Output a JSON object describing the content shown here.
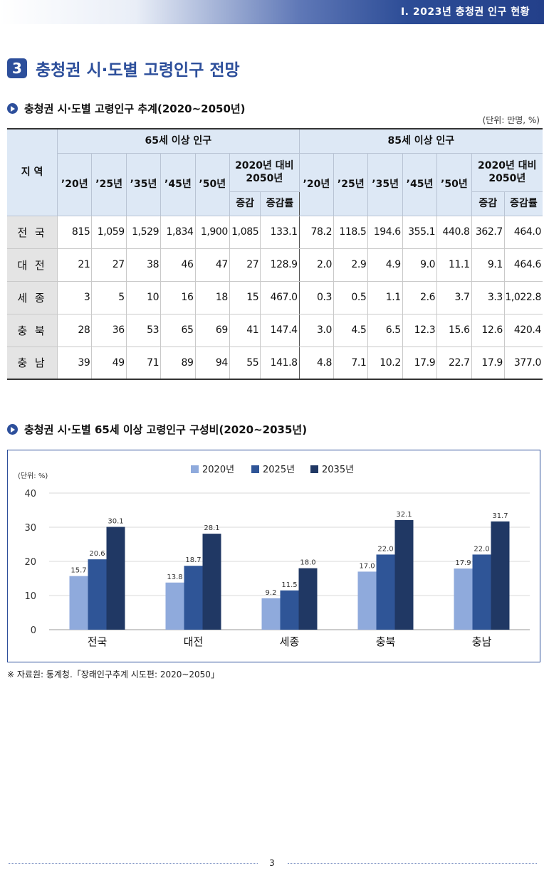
{
  "header": {
    "chapter": "Ⅰ. 2023년 충청권 인구 현황"
  },
  "section": {
    "number": "3",
    "title": "충청권 시·도별 고령인구 전망"
  },
  "table_section": {
    "title": "충청권 시·도별 고령인구 추계(2020~2050년)",
    "unit": "(단위: 만명, %)",
    "headers": {
      "region": "지 역",
      "group65": "65세 이상 인구",
      "group85": "85세 이상 인구",
      "compare": "2020년 대비\n2050년",
      "years": [
        "’20년",
        "’25년",
        "’35년",
        "’45년",
        "’50년"
      ],
      "change": "증감",
      "change_rate": "증감률"
    },
    "rows": [
      {
        "region": "전 국",
        "v65": [
          "815",
          "1,059",
          "1,529",
          "1,834",
          "1,900"
        ],
        "c65": "1,085",
        "r65": "133.1",
        "v85": [
          "78.2",
          "118.5",
          "194.6",
          "355.1",
          "440.8"
        ],
        "c85": "362.7",
        "r85": "464.0"
      },
      {
        "region": "대 전",
        "v65": [
          "21",
          "27",
          "38",
          "46",
          "47"
        ],
        "c65": "27",
        "r65": "128.9",
        "v85": [
          "2.0",
          "2.9",
          "4.9",
          "9.0",
          "11.1"
        ],
        "c85": "9.1",
        "r85": "464.6"
      },
      {
        "region": "세 종",
        "v65": [
          "3",
          "5",
          "10",
          "16",
          "18"
        ],
        "c65": "15",
        "r65": "467.0",
        "v85": [
          "0.3",
          "0.5",
          "1.1",
          "2.6",
          "3.7"
        ],
        "c85": "3.3",
        "r85": "1,022.8"
      },
      {
        "region": "충 북",
        "v65": [
          "28",
          "36",
          "53",
          "65",
          "69"
        ],
        "c65": "41",
        "r65": "147.4",
        "v85": [
          "3.0",
          "4.5",
          "6.5",
          "12.3",
          "15.6"
        ],
        "c85": "12.6",
        "r85": "420.4"
      },
      {
        "region": "충 남",
        "v65": [
          "39",
          "49",
          "71",
          "89",
          "94"
        ],
        "c65": "55",
        "r65": "141.8",
        "v85": [
          "4.8",
          "7.1",
          "10.2",
          "17.9",
          "22.7"
        ],
        "c85": "17.9",
        "r85": "377.0"
      }
    ]
  },
  "chart_section": {
    "title": "충청권 시·도별 65세 이상 고령인구 구성비(2020~2035년)"
  },
  "chart_data": {
    "type": "bar",
    "unit_label": "(단위: %)",
    "categories": [
      "전국",
      "대전",
      "세종",
      "충북",
      "충남"
    ],
    "series": [
      {
        "name": "2020년",
        "values": [
          15.7,
          13.8,
          9.2,
          17.0,
          17.9
        ],
        "labels": [
          "15.7",
          "13.8",
          "9.2",
          "17.0",
          "17.9"
        ],
        "color": "#8faadc"
      },
      {
        "name": "2025년",
        "values": [
          20.6,
          18.7,
          11.5,
          22.0,
          22.0
        ],
        "labels": [
          "20.6",
          "18.7",
          "11.5",
          "22.0",
          "22.0"
        ],
        "color": "#2f5597"
      },
      {
        "name": "2035년",
        "values": [
          30.1,
          28.1,
          18.0,
          32.1,
          31.7
        ],
        "labels": [
          "30.1",
          "28.1",
          "18.0",
          "32.1",
          "31.7"
        ],
        "color": "#203864"
      }
    ],
    "ylim": [
      0,
      40
    ],
    "yticks": [
      "0",
      "10",
      "20",
      "30",
      "40"
    ],
    "grid": true,
    "legend": "top-center"
  },
  "source_note": "※ 자료원: 통계청.「장래인구추계 시도편: 2020~2050」",
  "page_number": "3"
}
